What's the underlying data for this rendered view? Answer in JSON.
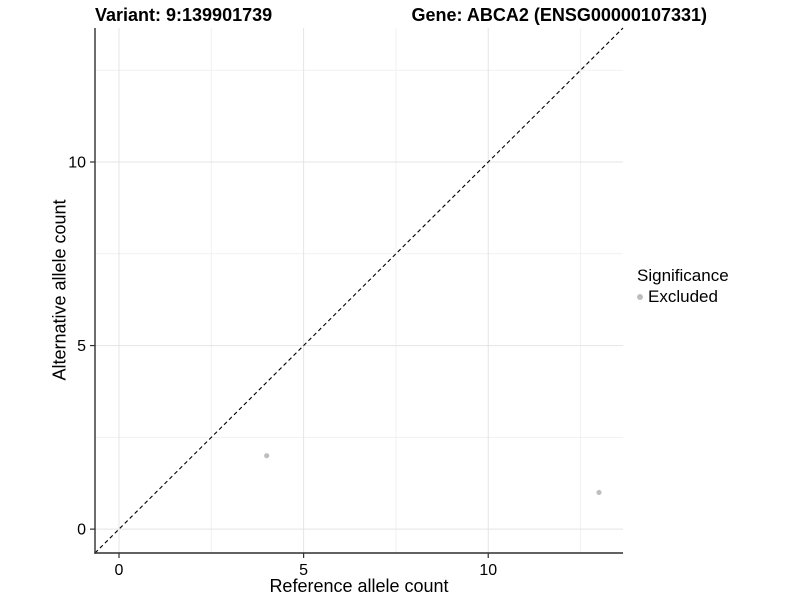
{
  "figure": {
    "title_left": "Variant: 9:139901739",
    "title_right": "Gene: ABCA2 (ENSG00000107331)"
  },
  "chart_data": {
    "type": "scatter",
    "title": "Variant: 9:139901739 | Gene: ABCA2 (ENSG00000107331)",
    "xlabel": "Reference allele count",
    "ylabel": "Alternative allele count",
    "xlim": [
      -0.65,
      13.65
    ],
    "ylim": [
      -0.65,
      13.65
    ],
    "x_breaks": [
      0,
      5,
      10
    ],
    "y_breaks": [
      0,
      5,
      10
    ],
    "x_minor_breaks": [
      2.5,
      7.5,
      12.5
    ],
    "y_minor_breaks": [
      2.5,
      7.5,
      12.5
    ],
    "grid": true,
    "series": [
      {
        "name": "Excluded",
        "color": "#bebebe",
        "points": [
          {
            "x": 4,
            "y": 2
          },
          {
            "x": 13,
            "y": 1
          }
        ]
      }
    ],
    "reference_line": {
      "type": "abline",
      "slope": 1,
      "intercept": 0,
      "style": "dashed",
      "color": "#000000"
    },
    "legend": {
      "title": "Significance",
      "position": "right",
      "entries": [
        {
          "label": "Excluded",
          "color": "#bebebe"
        }
      ]
    }
  },
  "colors": {
    "background": "#ffffff",
    "grid_major": "#e4e4e4",
    "grid_minor": "#f1f1f1",
    "axis": "#2f2f2f",
    "point": "#bebebe",
    "text": "#000000"
  }
}
